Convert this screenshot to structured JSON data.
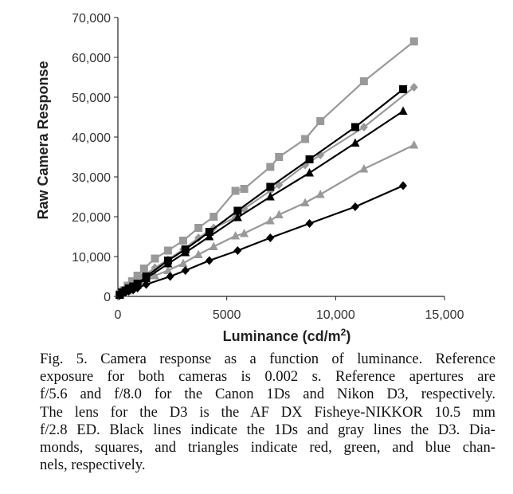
{
  "chart_data": {
    "type": "line",
    "xlabel": "Luminance (cd/m²)",
    "ylabel": "Raw Camera Response",
    "xlim": [
      0,
      15000
    ],
    "ylim": [
      0,
      70000
    ],
    "xticks": [
      "0",
      "5000",
      "10,000",
      "15,000"
    ],
    "xtick_values": [
      0,
      5000,
      10000,
      15000
    ],
    "yticks": [
      "0",
      "10,000",
      "20,000",
      "30,000",
      "40,000",
      "50,000",
      "60,000",
      "70,000"
    ],
    "ytick_values": [
      0,
      10000,
      20000,
      30000,
      40000,
      50000,
      60000,
      70000
    ],
    "grid": false,
    "legend": "none",
    "series": [
      {
        "color": "#000000",
        "marker": "diamond",
        "x": [
          80,
          200,
          350,
          500,
          700,
          900,
          1300,
          2400,
          3100,
          4200,
          5500,
          7000,
          8800,
          10900,
          13100
        ],
        "y": [
          200,
          600,
          1000,
          1300,
          1600,
          2100,
          3000,
          5000,
          6500,
          9000,
          11500,
          14700,
          18300,
          22500,
          27800
        ]
      },
      {
        "color": "#000000",
        "marker": "square",
        "x": [
          80,
          200,
          350,
          500,
          700,
          900,
          1300,
          2300,
          3100,
          4200,
          5500,
          7000,
          8800,
          10900,
          13100
        ],
        "y": [
          400,
          1000,
          1500,
          2000,
          2500,
          3200,
          5000,
          9000,
          11800,
          16200,
          21500,
          27500,
          34400,
          42500,
          52000
        ]
      },
      {
        "color": "#000000",
        "marker": "triangle",
        "x": [
          80,
          200,
          350,
          500,
          700,
          900,
          1300,
          2300,
          3100,
          4200,
          5500,
          7000,
          8800,
          10900,
          13100
        ],
        "y": [
          300,
          900,
          1400,
          1800,
          2300,
          3000,
          4500,
          8200,
          11000,
          15000,
          19800,
          25000,
          31000,
          38500,
          46500
        ]
      },
      {
        "color": "#999999",
        "marker": "diamond",
        "x": [
          100,
          250,
          450,
          650,
          900,
          1200,
          1700,
          2300,
          3000,
          3700,
          4400,
          5400,
          5800,
          7000,
          7400,
          8600,
          9300,
          11300,
          13600
        ],
        "y": [
          500,
          1300,
          2200,
          3100,
          4000,
          5200,
          7200,
          9200,
          11800,
          14700,
          17200,
          19800,
          22000,
          26500,
          28000,
          33000,
          35500,
          42500,
          52500
        ]
      },
      {
        "color": "#999999",
        "marker": "square",
        "x": [
          100,
          250,
          450,
          650,
          900,
          1200,
          1700,
          2300,
          3000,
          3700,
          4400,
          5400,
          5800,
          7000,
          7400,
          8600,
          9300,
          11300,
          13600
        ],
        "y": [
          600,
          1500,
          2700,
          3800,
          5200,
          7000,
          9500,
          11500,
          14000,
          17200,
          20000,
          26500,
          27000,
          32500,
          35000,
          39500,
          44000,
          54000,
          64000
        ]
      },
      {
        "color": "#999999",
        "marker": "triangle",
        "x": [
          100,
          250,
          450,
          650,
          900,
          1200,
          1700,
          2300,
          3000,
          3700,
          4400,
          5400,
          5800,
          7000,
          7400,
          8600,
          9300,
          11300,
          13600
        ],
        "y": [
          300,
          800,
          1400,
          2000,
          2800,
          3700,
          5200,
          6500,
          8300,
          10500,
          12500,
          15200,
          15800,
          19000,
          20500,
          23500,
          25600,
          32000,
          38000
        ]
      }
    ]
  },
  "caption": {
    "lines": [
      "Fig. 5.   Camera response as a function of luminance. Reference",
      "exposure for both cameras is 0.002 s. Reference apertures are",
      "f/5.6 and f/8.0 for the Canon 1Ds and Nikon D3, respectively.",
      "The lens for the D3 is the AF DX Fisheye-NIKKOR 10.5 mm",
      "f/2.8 ED. Black lines indicate the 1Ds and gray lines the D3. Dia-",
      "monds, squares, and triangles indicate red, green, and blue chan-",
      "nels, respectively."
    ]
  }
}
